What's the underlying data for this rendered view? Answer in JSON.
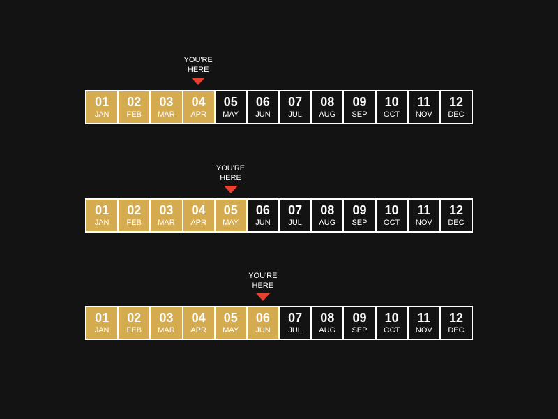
{
  "marker_label_line1": "YOU'RE",
  "marker_label_line2": "HERE",
  "colors": {
    "completed": "#d4ab4f",
    "upcoming": "#131313",
    "marker": "#e8412f",
    "background": "#131313"
  },
  "months": [
    {
      "num": "01",
      "name": "JAN"
    },
    {
      "num": "02",
      "name": "FEB"
    },
    {
      "num": "03",
      "name": "MAR"
    },
    {
      "num": "04",
      "name": "APR"
    },
    {
      "num": "05",
      "name": "MAY"
    },
    {
      "num": "06",
      "name": "JUN"
    },
    {
      "num": "07",
      "name": "JUL"
    },
    {
      "num": "08",
      "name": "AUG"
    },
    {
      "num": "09",
      "name": "SEP"
    },
    {
      "num": "10",
      "name": "OCT"
    },
    {
      "num": "11",
      "name": "NOV"
    },
    {
      "num": "12",
      "name": "DEC"
    }
  ],
  "timelines": [
    {
      "current_month": 4
    },
    {
      "current_month": 5
    },
    {
      "current_month": 6
    }
  ]
}
